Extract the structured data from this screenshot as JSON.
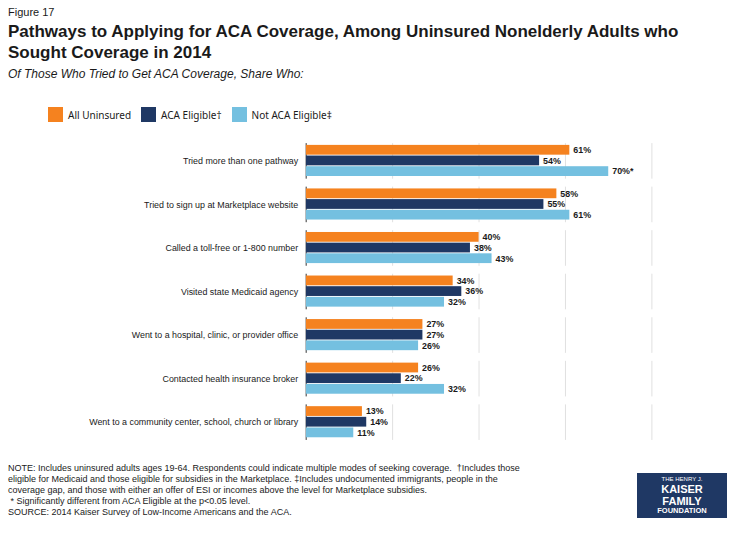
{
  "chart_data": {
    "type": "bar",
    "orientation": "horizontal",
    "figure_label": "Figure 17",
    "title": "Pathways to Applying for ACA Coverage, Among Uninsured Nonelderly Adults who Sought Coverage in 2014",
    "subtitle": "Of Those Who Tried to Get ACA Coverage, Share Who:",
    "categories": [
      "Tried more than one pathway",
      "Tried to sign up at Marketplace website",
      "Called a toll-free or 1-800 number",
      "Visited state Medicaid agency",
      "Went to a hospital, clinic, or provider office",
      "Contacted health insurance broker",
      "Went to a community center, school, church or library"
    ],
    "series": [
      {
        "name": "All Uninsured",
        "color": "#F5821F",
        "values": [
          61,
          58,
          40,
          34,
          27,
          26,
          13
        ],
        "value_labels": [
          "61%",
          "58%",
          "40%",
          "34%",
          "27%",
          "26%",
          "13%"
        ]
      },
      {
        "name": "ACA Eligible†",
        "color": "#1F3864",
        "values": [
          54,
          55,
          38,
          36,
          27,
          22,
          14
        ],
        "value_labels": [
          "54%",
          "55%",
          "38%",
          "36%",
          "27%",
          "22%",
          "14%"
        ]
      },
      {
        "name": "Not ACA Eligible‡",
        "color": "#74C0E0",
        "values": [
          70,
          61,
          43,
          32,
          26,
          32,
          11
        ],
        "value_labels": [
          "70%*",
          "61%",
          "43%",
          "32%",
          "26%",
          "32%",
          "11%"
        ]
      }
    ],
    "xlim": [
      0,
      80
    ],
    "xticks": [
      20,
      40,
      60,
      80
    ],
    "grid": true,
    "tick_labels": "y",
    "data_labels": true,
    "legend": "top",
    "notes": [
      "NOTE: Includes uninsured adults ages 19-64. Respondents could indicate multiple modes of seeking coverage.  †Includes those",
      "eligible for Medicaid and those eligible for subsidies in the Marketplace. ‡Includes undocumented immigrants, people in the",
      "coverage gap, and those with either an offer of ESI or incomes above the level for Marketplace subsidies.",
      " * Significantly different from ACA Eligible at the p<0.05 level.",
      "SOURCE: 2014 Kaiser Survey of Low-Income Americans and the ACA."
    ],
    "logo": {
      "text": [
        "THE HENRY J.",
        "KAISER",
        "FAMILY",
        "FOUNDATION"
      ],
      "color": "#1F3864"
    }
  }
}
